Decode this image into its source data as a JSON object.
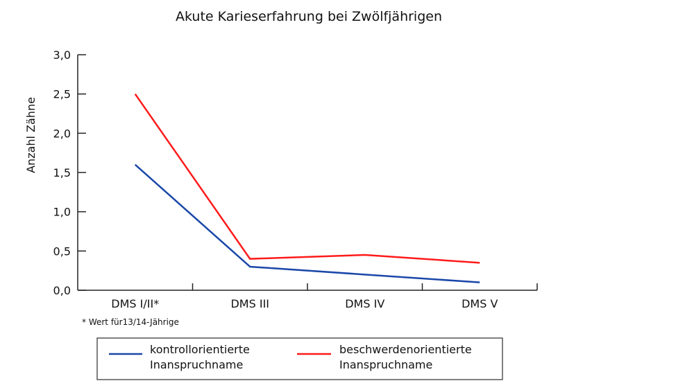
{
  "chart_data": {
    "type": "line",
    "title": "Akute Karieserfahrung bei Zwölfjährigen",
    "xlabel": "",
    "ylabel": "Anzahl Zähne",
    "categories": [
      "DMS I/II*",
      "DMS III",
      "DMS IV",
      "DMS V"
    ],
    "ylim": [
      0,
      3.0
    ],
    "yticks": [
      "0,0",
      "0,5",
      "1,0",
      "1,5",
      "2,0",
      "2,5",
      "3,0"
    ],
    "ytick_values": [
      0,
      0.5,
      1.0,
      1.5,
      2.0,
      2.5,
      3.0
    ],
    "grid": false,
    "footnote": "* Wert für13/14-Jährige",
    "legend_position": "bottom",
    "series": [
      {
        "name_line1": "kontrollorientierte",
        "name_line2": "Inanspruchname",
        "color": "#1a47a8",
        "values": [
          1.6,
          0.3,
          0.2,
          0.1
        ]
      },
      {
        "name_line1": "beschwerdenorientierte",
        "name_line2": "Inanspruchname",
        "color": "#ff1a1a",
        "values": [
          2.5,
          0.4,
          0.45,
          0.35
        ]
      }
    ]
  }
}
